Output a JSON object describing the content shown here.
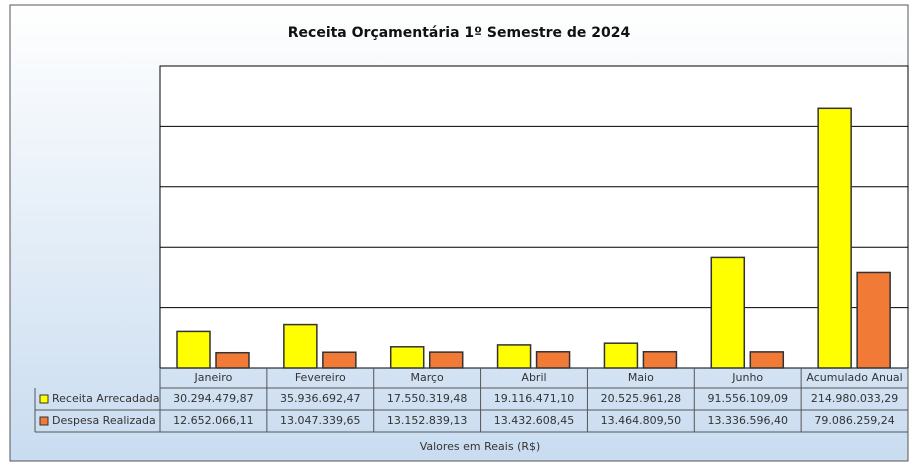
{
  "chart_data": {
    "type": "bar",
    "title": "Receita Orçamentária 1º Semestre de 2024",
    "x_label": "Valores em Reais (R$)",
    "categories": [
      "Janeiro",
      "Fevereiro",
      "Março",
      "Abril",
      "Maio",
      "Junho",
      "Acumulado Anual"
    ],
    "series": [
      {
        "name": "Receita Arrecadada",
        "color": "#ffff00",
        "values": [
          30294479.87,
          35936692.47,
          17550319.48,
          19116471.1,
          20525961.28,
          91556109.09,
          214980033.29
        ],
        "value_labels": [
          "30.294.479,87",
          "35.936.692,47",
          "17.550.319,48",
          "19.116.471,10",
          "20.525.961,28",
          "91.556.109,09",
          "214.980.033,29"
        ]
      },
      {
        "name": "Despesa Realizada",
        "color": "#f07a36",
        "values": [
          12652066.11,
          13047339.65,
          13152839.13,
          13432608.45,
          13464809.5,
          13336596.4,
          79086259.24
        ],
        "value_labels": [
          "12.652.066,11",
          "13.047.339,65",
          "13.152.839,13",
          "13.432.608,45",
          "13.464.809,50",
          "13.336.596,40",
          "79.086.259,24"
        ]
      }
    ],
    "ylim": [
      0,
      250000000
    ],
    "yticks": [
      0,
      50000000,
      100000000,
      150000000,
      200000000,
      250000000
    ],
    "grid": true
  }
}
